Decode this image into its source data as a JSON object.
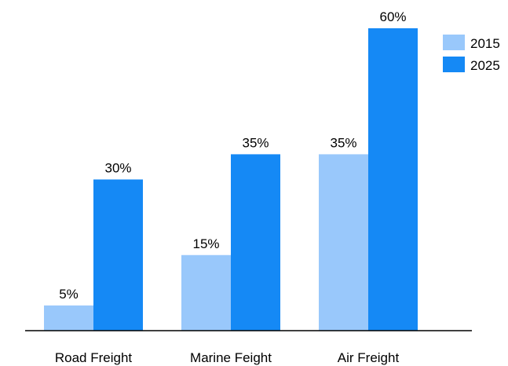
{
  "chart_data": {
    "type": "bar",
    "categories": [
      "Road Freight",
      "Marine Feight",
      "Air Freight"
    ],
    "series": [
      {
        "name": "2015",
        "values": [
          5,
          15,
          35
        ],
        "labels": [
          "5%",
          "15%",
          "35%"
        ],
        "color": "#99c8fb"
      },
      {
        "name": "2025",
        "values": [
          30,
          35,
          60
        ],
        "labels": [
          "30%",
          "35%",
          "60%"
        ],
        "color": "#1589f5"
      }
    ],
    "unit": "%",
    "ylim": [
      0,
      60
    ],
    "grid": false,
    "legend": "top-right"
  }
}
